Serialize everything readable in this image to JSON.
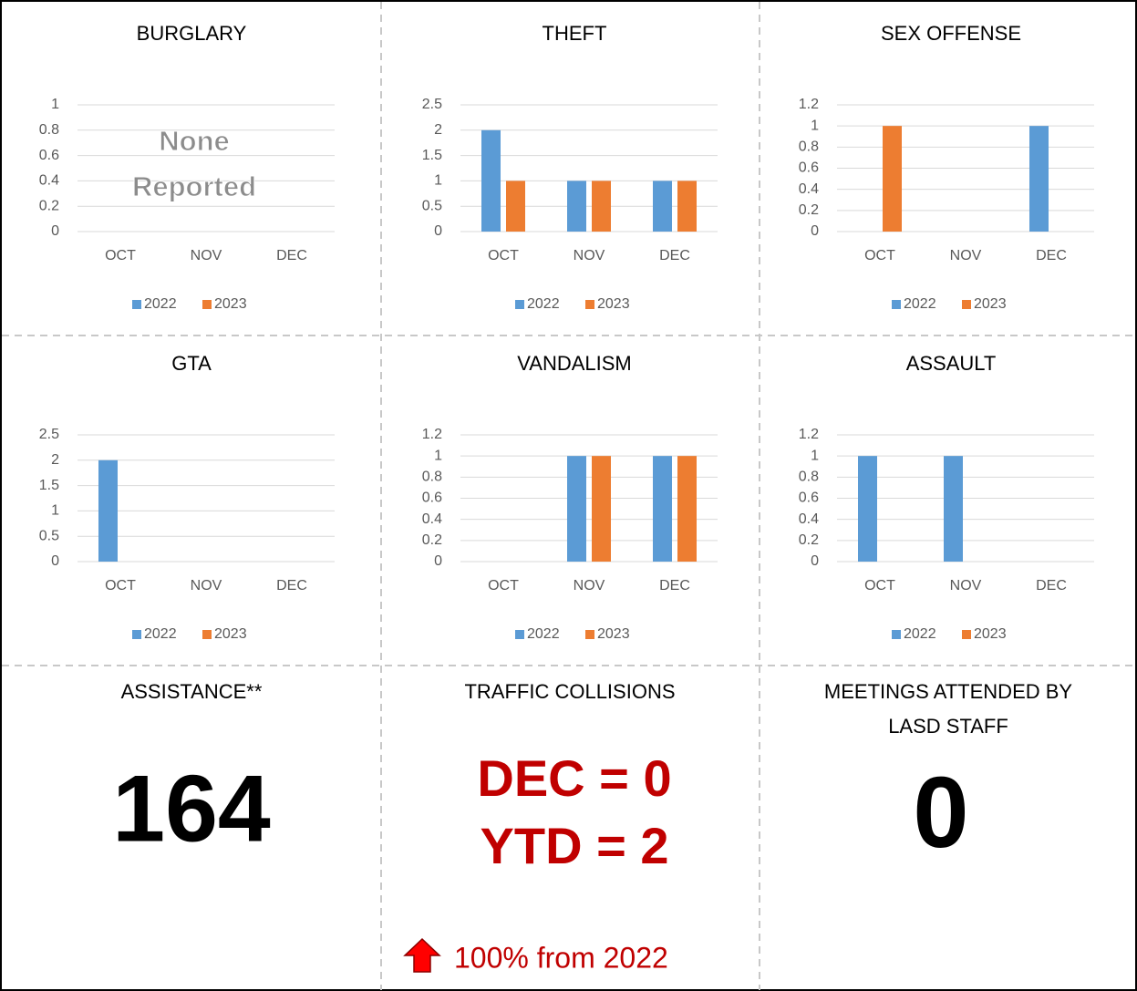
{
  "chart_data": [
    {
      "type": "bar",
      "title": "BURGLARY",
      "categories": [
        "OCT",
        "NOV",
        "DEC"
      ],
      "series": [
        {
          "name": "2022",
          "color": "#5b9bd5",
          "values": [
            0,
            0,
            0
          ]
        },
        {
          "name": "2023",
          "color": "#ed7d31",
          "values": [
            0,
            0,
            0
          ]
        }
      ],
      "ylim": [
        0,
        1
      ],
      "yticks": [
        0,
        0.2,
        0.4,
        0.6,
        0.8,
        1
      ],
      "grid": true,
      "legend": "bottom",
      "annotation": [
        "None",
        "Reported"
      ]
    },
    {
      "type": "bar",
      "title": "THEFT",
      "categories": [
        "OCT",
        "NOV",
        "DEC"
      ],
      "series": [
        {
          "name": "2022",
          "color": "#5b9bd5",
          "values": [
            2,
            1,
            1
          ]
        },
        {
          "name": "2023",
          "color": "#ed7d31",
          "values": [
            1,
            1,
            1
          ]
        }
      ],
      "ylim": [
        0,
        2.5
      ],
      "yticks": [
        0,
        0.5,
        1,
        1.5,
        2,
        2.5
      ],
      "grid": true,
      "legend": "bottom"
    },
    {
      "type": "bar",
      "title": "SEX OFFENSE",
      "categories": [
        "OCT",
        "NOV",
        "DEC"
      ],
      "series": [
        {
          "name": "2022",
          "color": "#5b9bd5",
          "values": [
            0,
            0,
            1
          ]
        },
        {
          "name": "2023",
          "color": "#ed7d31",
          "values": [
            1,
            0,
            0
          ]
        }
      ],
      "ylim": [
        0,
        1.2
      ],
      "yticks": [
        0,
        0.2,
        0.4,
        0.6,
        0.8,
        1,
        1.2
      ],
      "grid": true,
      "legend": "bottom"
    },
    {
      "type": "bar",
      "title": "GTA",
      "categories": [
        "OCT",
        "NOV",
        "DEC"
      ],
      "series": [
        {
          "name": "2022",
          "color": "#5b9bd5",
          "values": [
            2,
            0,
            0
          ]
        },
        {
          "name": "2023",
          "color": "#ed7d31",
          "values": [
            0,
            0,
            0
          ]
        }
      ],
      "ylim": [
        0,
        2.5
      ],
      "yticks": [
        0,
        0.5,
        1,
        1.5,
        2,
        2.5
      ],
      "grid": true,
      "legend": "bottom"
    },
    {
      "type": "bar",
      "title": "VANDALISM",
      "categories": [
        "OCT",
        "NOV",
        "DEC"
      ],
      "series": [
        {
          "name": "2022",
          "color": "#5b9bd5",
          "values": [
            0,
            1,
            1
          ]
        },
        {
          "name": "2023",
          "color": "#ed7d31",
          "values": [
            0,
            1,
            1
          ]
        }
      ],
      "ylim": [
        0,
        1.2
      ],
      "yticks": [
        0,
        0.2,
        0.4,
        0.6,
        0.8,
        1,
        1.2
      ],
      "grid": true,
      "legend": "bottom"
    },
    {
      "type": "bar",
      "title": "ASSAULT",
      "categories": [
        "OCT",
        "NOV",
        "DEC"
      ],
      "series": [
        {
          "name": "2022",
          "color": "#5b9bd5",
          "values": [
            1,
            1,
            0
          ]
        },
        {
          "name": "2023",
          "color": "#ed7d31",
          "values": [
            0,
            0,
            0
          ]
        }
      ],
      "ylim": [
        0,
        1.2
      ],
      "yticks": [
        0,
        0.2,
        0.4,
        0.6,
        0.8,
        1,
        1.2
      ],
      "grid": true,
      "legend": "bottom"
    }
  ],
  "panels": {
    "assistance": {
      "title": "ASSISTANCE**",
      "value": 164
    },
    "traffic": {
      "title": "TRAFFIC COLLISIONS",
      "lines": [
        "DEC = 0",
        "YTD = 2"
      ],
      "change": "100% from 2022"
    },
    "meetings": {
      "title_lines": [
        "MEETINGS ATTENDED BY",
        "LASD STAFF"
      ],
      "value": 0
    }
  }
}
